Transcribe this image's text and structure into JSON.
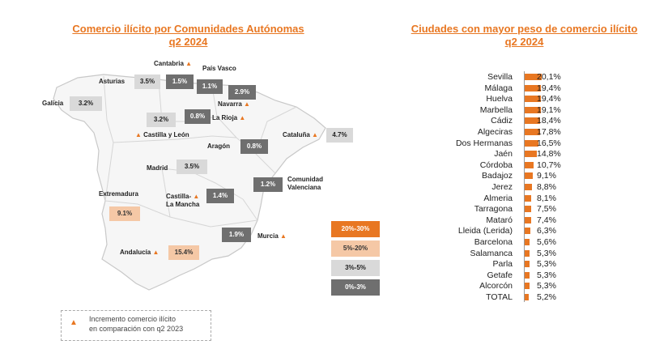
{
  "left_title": {
    "line1": "Comercio ilícito por Comunidades Autónomas",
    "line2": "q2 2024"
  },
  "right_title": {
    "line1": "Ciudades con mayor peso de comercio ilícito",
    "line2": "q2 2024"
  },
  "colors": {
    "accent": "#e87722",
    "band_20_30": "#e87722",
    "band_5_20": "#f5c8a6",
    "band_3_5": "#d9d9d9",
    "band_0_3": "#6f6f6f"
  },
  "icons": {
    "increase": "triangle-up-icon"
  },
  "regions": {
    "galicia": {
      "name": "Galicia",
      "value": "3.2%",
      "increase": false
    },
    "asturias": {
      "name": "Asturias",
      "value": "3.5%",
      "increase": false
    },
    "cantabria": {
      "name": "Cantabria",
      "value": "1.5%",
      "increase": true
    },
    "pais_vasco": {
      "name": "País Vasco",
      "value": "1.1%",
      "increase": false
    },
    "navarra": {
      "name": "Navarra",
      "value": "2.9%",
      "increase": true
    },
    "castilla_leon": {
      "name": "Castilla y León",
      "value": "3.2%",
      "increase": true
    },
    "la_rioja": {
      "name": "La Rioja",
      "value": "0.8%",
      "increase": true
    },
    "cataluna": {
      "name": "Cataluña",
      "value": "4.7%",
      "increase": true
    },
    "aragon": {
      "name": "Aragón",
      "value": "0.8%",
      "increase": false
    },
    "madrid": {
      "name": "Madrid",
      "value": "3.5%",
      "increase": false
    },
    "comunidad_valenciana": {
      "name_line1": "Comunidad",
      "name_line2": "Valenciana",
      "value": "1.2%",
      "increase": false
    },
    "extremadura": {
      "name": "Extremadura",
      "value": "9.1%",
      "increase": false
    },
    "castilla_la_mancha": {
      "name_line1": "Castilla-",
      "name_line2": "La Mancha",
      "value": "1.4%",
      "increase": true
    },
    "murcia": {
      "name": "Murcia",
      "value": "1.9%",
      "increase": true
    },
    "andalucia": {
      "name": "Andalucía",
      "value": "15.4%",
      "increase": true
    }
  },
  "legend": [
    "20%-30%",
    "5%-20%",
    "3%-5%",
    "0%-3%"
  ],
  "note": {
    "line1": "Incremento comercio ilícito",
    "line2": "en comparación con q2 2023"
  },
  "chart_data": {
    "type": "bar",
    "orientation": "horizontal",
    "title": "Ciudades con mayor peso de comercio ilícito q2 2024",
    "categories": [
      "Sevilla",
      "Málaga",
      "Huelva",
      "Marbella",
      "Cádiz",
      "Algeciras",
      "Dos Hermanas",
      "Jaén",
      "Córdoba",
      "Badajoz",
      "Jerez",
      "Almeria",
      "Tarragona",
      "Mataró",
      "Lleida (Lerida)",
      "Barcelona",
      "Salamanca",
      "Parla",
      "Getafe",
      "Alcorcón",
      "TOTAL"
    ],
    "values": [
      20.1,
      19.4,
      19.4,
      19.1,
      18.4,
      17.8,
      16.5,
      14.8,
      10.7,
      9.1,
      8.8,
      8.1,
      7.5,
      7.4,
      6.3,
      5.6,
      5.3,
      5.3,
      5.3,
      5.3,
      5.2
    ],
    "labels": [
      "20,1%",
      "19,4%",
      "19,4%",
      "19,1%",
      "18,4%",
      "17,8%",
      "16,5%",
      "14,8%",
      "10,7%",
      "9,1%",
      "8,8%",
      "8,1%",
      "7,5%",
      "7,4%",
      "6,3%",
      "5,6%",
      "5,3%",
      "5,3%",
      "5,3%",
      "5,3%",
      "5,2%"
    ],
    "xlabel": "",
    "ylabel": "",
    "grid": false
  }
}
